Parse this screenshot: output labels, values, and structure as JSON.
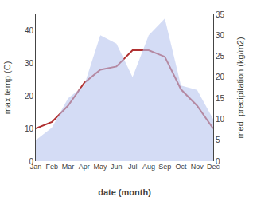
{
  "chart_data": {
    "type": "line",
    "categories": [
      "Jan",
      "Feb",
      "Mar",
      "Apr",
      "May",
      "Jun",
      "Jul",
      "Aug",
      "Sep",
      "Oct",
      "Nov",
      "Dec"
    ],
    "series": [
      {
        "type": "area",
        "axis": "y2",
        "color": "#b8c4ee",
        "values": [
          5,
          8,
          15,
          18,
          30,
          28,
          20,
          30,
          34,
          18,
          17,
          10
        ]
      },
      {
        "type": "line",
        "color": "#b03030",
        "values": [
          10,
          12,
          17,
          24,
          28,
          29,
          34,
          34,
          32,
          22,
          17,
          10
        ]
      }
    ],
    "xlabel": "date (month)",
    "ylabel": "max temp (C)",
    "y2label": "med. precipitation (kg/m2)",
    "ylim": [
      0,
      45
    ],
    "yticks": [
      0,
      10,
      20,
      30,
      40
    ],
    "y2lim": [
      0,
      35
    ],
    "y2ticks": [
      0,
      5,
      10,
      15,
      20,
      25,
      30,
      35
    ],
    "grid": false
  }
}
